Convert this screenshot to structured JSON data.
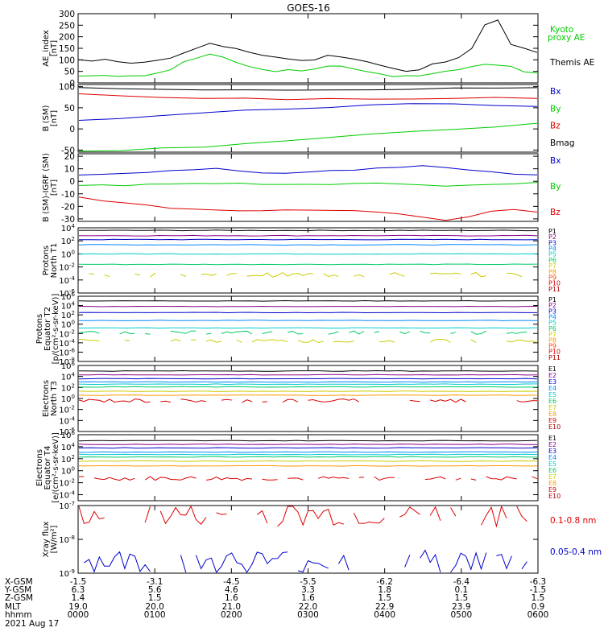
{
  "title": "GOES-16",
  "colors": {
    "black": "#000000",
    "red": "#dd0000",
    "green": "#00cc00",
    "blue": "#0000cc",
    "yellow": "#cccc00",
    "cyan": "#00cccc",
    "orange": "#ff9900",
    "purple": "#880088"
  },
  "chart_data": [
    {
      "type": "line",
      "ylabel": [
        "AE_index",
        "[nT]"
      ],
      "ylim": [
        0,
        300
      ],
      "yticks": [
        "300",
        "250",
        "200",
        "150",
        "100",
        "50",
        "0"
      ],
      "legend": [
        {
          "text": "Kyoto",
          "color": "#00cc00"
        },
        {
          "text": "proxy AE",
          "color": "#00cc00"
        },
        {
          "text": "Themis AE",
          "color": "#000000"
        }
      ],
      "series": [
        {
          "name": "Themis AE",
          "color": "#000000",
          "values": [
            100,
            95,
            100,
            90,
            85,
            90,
            95,
            110,
            130,
            150,
            170,
            160,
            150,
            130,
            120,
            110,
            105,
            95,
            100,
            120,
            110,
            100,
            95,
            80,
            60,
            50,
            60,
            80,
            90,
            110,
            150,
            250,
            270,
            170,
            150,
            130
          ]
        },
        {
          "name": "Kyoto proxy AE",
          "color": "#00cc00",
          "values": [
            30,
            30,
            30,
            30,
            30,
            30,
            40,
            60,
            90,
            110,
            125,
            110,
            90,
            70,
            60,
            50,
            55,
            50,
            60,
            70,
            70,
            60,
            50,
            40,
            30,
            30,
            30,
            40,
            50,
            60,
            70,
            80,
            75,
            70,
            50,
            40
          ]
        }
      ]
    },
    {
      "type": "line",
      "ylabel": [
        "B (SM)",
        "[nT]"
      ],
      "ylim": [
        -55,
        105
      ],
      "yticks": [
        "100",
        "50",
        "0",
        "-50"
      ],
      "legend": [
        {
          "text": "Bx",
          "color": "#0000cc"
        },
        {
          "text": "By",
          "color": "#00cc00"
        },
        {
          "text": "Bz",
          "color": "#dd0000"
        },
        {
          "text": "Bmag",
          "color": "#000000"
        }
      ],
      "series": [
        {
          "name": "Bmag",
          "color": "#000000",
          "values": [
            97,
            96,
            95,
            94,
            94,
            93,
            93,
            93,
            94,
            95,
            96,
            97
          ]
        },
        {
          "name": "Bz",
          "color": "#dd0000",
          "values": [
            82,
            78,
            75,
            73,
            72,
            71,
            70,
            70,
            71,
            72,
            73,
            74
          ]
        },
        {
          "name": "Bx",
          "color": "#0000cc",
          "values": [
            20,
            26,
            32,
            38,
            43,
            48,
            52,
            56,
            58,
            58,
            56,
            54
          ]
        },
        {
          "name": "By",
          "color": "#00cc00",
          "values": [
            -52,
            -50,
            -46,
            -42,
            -36,
            -30,
            -22,
            -14,
            -6,
            0,
            6,
            12
          ]
        }
      ]
    },
    {
      "type": "line",
      "ylabel": [
        "B (SM)-IGRF (SM)",
        "[nT]"
      ],
      "ylim": [
        -32,
        22
      ],
      "yticks": [
        "20",
        "10",
        "0",
        "-10",
        "-20",
        "-30"
      ],
      "legend": [
        {
          "text": "Bx",
          "color": "#0000cc"
        },
        {
          "text": "By",
          "color": "#00cc00"
        },
        {
          "text": "Bz",
          "color": "#dd0000"
        }
      ],
      "series": [
        {
          "name": "Bx",
          "color": "#0000cc",
          "values": [
            5,
            5,
            6,
            7,
            8,
            9,
            10,
            8,
            7,
            6,
            7,
            8,
            9,
            10,
            11,
            12,
            11,
            9,
            7,
            6,
            5
          ]
        },
        {
          "name": "By",
          "color": "#00cc00",
          "values": [
            -3,
            -3,
            -3,
            -2,
            -2,
            -2,
            -2,
            -2,
            -2,
            -3,
            -3,
            -3,
            -2,
            -2,
            -2,
            -3,
            -4,
            -3,
            -2,
            -2,
            -1
          ]
        },
        {
          "name": "Bz",
          "color": "#dd0000",
          "values": [
            -13,
            -15,
            -17,
            -19,
            -21,
            -22,
            -23,
            -23,
            -23,
            -23,
            -23,
            -23,
            -23,
            -24,
            -26,
            -28,
            -31,
            -28,
            -24,
            -23,
            -24
          ]
        }
      ]
    },
    {
      "type": "line",
      "ylabel": [
        "Protons",
        "North T1"
      ],
      "ylog": [
        -6,
        4
      ],
      "yticks": [
        {
          "b": "10",
          "e": "4",
          "v": 4
        },
        {
          "b": "10",
          "e": "2",
          "v": 2
        },
        {
          "b": "10",
          "e": "0",
          "v": 0
        },
        {
          "b": "10",
          "e": "-2",
          "v": -2
        },
        {
          "b": "10",
          "e": "-4",
          "v": -4
        },
        {
          "b": "10",
          "e": "-6",
          "v": -6
        }
      ],
      "legend": [
        {
          "text": "P1",
          "color": "#000000"
        },
        {
          "text": "P2",
          "color": "#880088"
        },
        {
          "text": "P3",
          "color": "#0000cc"
        },
        {
          "text": "P4",
          "color": "#0088ff"
        },
        {
          "text": "P5",
          "color": "#00cccc"
        },
        {
          "text": "P6",
          "color": "#00cc66"
        },
        {
          "text": "P7",
          "color": "#cccc00"
        },
        {
          "text": "P8",
          "color": "#ff9900"
        },
        {
          "text": "P9",
          "color": "#ff4400"
        },
        {
          "text": "P10",
          "color": "#dd0000"
        },
        {
          "text": "P11",
          "color": "#aa0000"
        }
      ],
      "series": [
        {
          "name": "P1",
          "color": "#000000",
          "log": 3.6
        },
        {
          "name": "P2",
          "color": "#880088",
          "log": 2.8
        },
        {
          "name": "P3",
          "color": "#0000cc",
          "log": 2.2
        },
        {
          "name": "P4",
          "color": "#0088ff",
          "log": 1.4
        },
        {
          "name": "P5",
          "color": "#00cccc",
          "log": 0.0
        },
        {
          "name": "P6",
          "color": "#00cc66",
          "log": -1.6
        },
        {
          "name": "P7",
          "color": "#cccc00",
          "log": -3.2,
          "noisy": true
        }
      ]
    },
    {
      "type": "line",
      "ylabel": [
        "Protons",
        "Equator T2",
        "[p/(cm²-s-sr-keV)]"
      ],
      "ylog": [
        -8,
        6
      ],
      "yticks": [
        {
          "b": "10",
          "e": "6",
          "v": 6
        },
        {
          "b": "10",
          "e": "4",
          "v": 4
        },
        {
          "b": "10",
          "e": "2",
          "v": 2
        },
        {
          "b": "10",
          "e": "0",
          "v": 0
        },
        {
          "b": "10",
          "e": "-2",
          "v": -2
        },
        {
          "b": "10",
          "e": "-4",
          "v": -4
        },
        {
          "b": "10",
          "e": "-6",
          "v": -6
        },
        {
          "b": "10",
          "e": "-8",
          "v": -8
        }
      ],
      "legend": [
        {
          "text": "P1",
          "color": "#000000"
        },
        {
          "text": "P2",
          "color": "#880088"
        },
        {
          "text": "P3",
          "color": "#0000cc"
        },
        {
          "text": "P4",
          "color": "#0088ff"
        },
        {
          "text": "P5",
          "color": "#00cccc"
        },
        {
          "text": "P6",
          "color": "#00cc66"
        },
        {
          "text": "P7",
          "color": "#cccc00"
        },
        {
          "text": "P8",
          "color": "#ff9900"
        },
        {
          "text": "P9",
          "color": "#ff4400"
        },
        {
          "text": "P10",
          "color": "#dd0000"
        },
        {
          "text": "P11",
          "color": "#aa0000"
        }
      ],
      "series": [
        {
          "name": "P1",
          "color": "#000000",
          "log": 5.0
        },
        {
          "name": "P2",
          "color": "#880088",
          "log": 3.8
        },
        {
          "name": "P3",
          "color": "#0000cc",
          "log": 2.5
        },
        {
          "name": "P4",
          "color": "#0088ff",
          "log": 0.8
        },
        {
          "name": "P5",
          "color": "#00cccc",
          "log": -0.8
        },
        {
          "name": "P6",
          "color": "#00cc66",
          "log": -1.8,
          "noisy": true
        },
        {
          "name": "P7",
          "color": "#cccc00",
          "log": -3.6,
          "noisy": true
        }
      ]
    },
    {
      "type": "line",
      "ylabel": [
        "Electrons",
        "North T3"
      ],
      "ylog": [
        -6,
        6
      ],
      "yticks": [
        {
          "b": "10",
          "e": "6",
          "v": 6
        },
        {
          "b": "10",
          "e": "4",
          "v": 4
        },
        {
          "b": "10",
          "e": "2",
          "v": 2
        },
        {
          "b": "10",
          "e": "0",
          "v": 0
        },
        {
          "b": "10",
          "e": "-2",
          "v": -2
        },
        {
          "b": "10",
          "e": "-4",
          "v": -4
        },
        {
          "b": "10",
          "e": "-6",
          "v": -6
        }
      ],
      "legend": [
        {
          "text": "E1",
          "color": "#000000"
        },
        {
          "text": "E2",
          "color": "#880088"
        },
        {
          "text": "E3",
          "color": "#0000cc"
        },
        {
          "text": "E4",
          "color": "#0088ff"
        },
        {
          "text": "E5",
          "color": "#00cccc"
        },
        {
          "text": "E6",
          "color": "#00cc66"
        },
        {
          "text": "E7",
          "color": "#cccc00"
        },
        {
          "text": "E8",
          "color": "#ff9900"
        },
        {
          "text": "E9",
          "color": "#dd0000"
        },
        {
          "text": "E10",
          "color": "#aa0000"
        }
      ],
      "series": [
        {
          "name": "E1",
          "color": "#000000",
          "log": 5.0
        },
        {
          "name": "E2",
          "color": "#880088",
          "log": 4.3
        },
        {
          "name": "E3",
          "color": "#0000cc",
          "log": 3.6
        },
        {
          "name": "E4",
          "color": "#0088ff",
          "log": 3.0
        },
        {
          "name": "E5",
          "color": "#00cccc",
          "log": 2.6
        },
        {
          "name": "E6",
          "color": "#00cc66",
          "log": 2.1
        },
        {
          "name": "E7",
          "color": "#cccc00",
          "log": 1.3
        },
        {
          "name": "E8",
          "color": "#ff9900",
          "log": 0.6
        },
        {
          "name": "E9",
          "color": "#dd0000",
          "log": -0.4,
          "noisy": true
        }
      ]
    },
    {
      "type": "line",
      "ylabel": [
        "Electrons",
        "Equator T4",
        "[e/(cm²-s-sr-keV)]"
      ],
      "ylog": [
        -5,
        6
      ],
      "yticks": [
        {
          "b": "10",
          "e": "6",
          "v": 6
        },
        {
          "b": "10",
          "e": "4",
          "v": 4
        },
        {
          "b": "10",
          "e": "2",
          "v": 2
        },
        {
          "b": "10",
          "e": "0",
          "v": 0
        },
        {
          "b": "10",
          "e": "-2",
          "v": -2
        },
        {
          "b": "10",
          "e": "-4",
          "v": -4
        }
      ],
      "legend": [
        {
          "text": "E1",
          "color": "#000000"
        },
        {
          "text": "E2",
          "color": "#880088"
        },
        {
          "text": "E3",
          "color": "#0000cc"
        },
        {
          "text": "E4",
          "color": "#0088ff"
        },
        {
          "text": "E5",
          "color": "#00cccc"
        },
        {
          "text": "E6",
          "color": "#00cc66"
        },
        {
          "text": "E7",
          "color": "#cccc00"
        },
        {
          "text": "E8",
          "color": "#ff9900"
        },
        {
          "text": "E9",
          "color": "#dd0000"
        },
        {
          "text": "E10",
          "color": "#aa0000"
        }
      ],
      "series": [
        {
          "name": "E1",
          "color": "#000000",
          "log": 5.0
        },
        {
          "name": "E2",
          "color": "#880088",
          "log": 4.4
        },
        {
          "name": "E3",
          "color": "#0000cc",
          "log": 3.8
        },
        {
          "name": "E4",
          "color": "#0088ff",
          "log": 3.1
        },
        {
          "name": "E5",
          "color": "#00cccc",
          "log": 2.7
        },
        {
          "name": "E6",
          "color": "#00cc66",
          "log": 2.3
        },
        {
          "name": "E7",
          "color": "#cccc00",
          "log": 1.6
        },
        {
          "name": "E8",
          "color": "#ff9900",
          "log": 0.8
        },
        {
          "name": "E9",
          "color": "#dd0000",
          "log": -1.3,
          "noisy": true
        }
      ]
    },
    {
      "type": "line",
      "ylabel": [
        "Xray flux",
        "[W/m²]"
      ],
      "ylog": [
        -9,
        -7
      ],
      "yticks": [
        {
          "b": "10",
          "e": "-7",
          "v": -7
        },
        {
          "b": "10",
          "e": "-8",
          "v": -8
        },
        {
          "b": "10",
          "e": "-9",
          "v": -9
        }
      ],
      "legend": [
        {
          "text": "0.1-0.8 nm",
          "color": "#dd0000"
        },
        {
          "text": "0.05-0.4 nm",
          "color": "#0000cc"
        }
      ],
      "series": [
        {
          "name": "0.1-0.8 nm",
          "color": "#dd0000",
          "log": -7.28,
          "noisy": true
        },
        {
          "name": "0.05-0.4 nm",
          "color": "#0000cc",
          "log": -8.65,
          "noisy": true
        }
      ]
    }
  ],
  "xaxis": {
    "rows": [
      {
        "label": "X-GSM",
        "values": [
          "-1.5",
          "-3.1",
          "-4.5",
          "-5.5",
          "-6.2",
          "-6.4",
          "-6.3"
        ]
      },
      {
        "label": "Y-GSM",
        "values": [
          "6.3",
          "5.6",
          "4.6",
          "3.3",
          "1.8",
          "0.1",
          "-1.5"
        ]
      },
      {
        "label": "Z-GSM",
        "values": [
          "1.4",
          "1.5",
          "1.6",
          "1.6",
          "1.5",
          "1.5",
          "1.5"
        ]
      },
      {
        "label": "MLT",
        "values": [
          "19.0",
          "20.0",
          "21.0",
          "22.0",
          "22.9",
          "23.9",
          "0.9"
        ]
      },
      {
        "label": "hhmm",
        "values": [
          "0000",
          "0100",
          "0200",
          "0300",
          "0400",
          "0500",
          "0600"
        ]
      }
    ],
    "date": "2021 Aug 17"
  }
}
